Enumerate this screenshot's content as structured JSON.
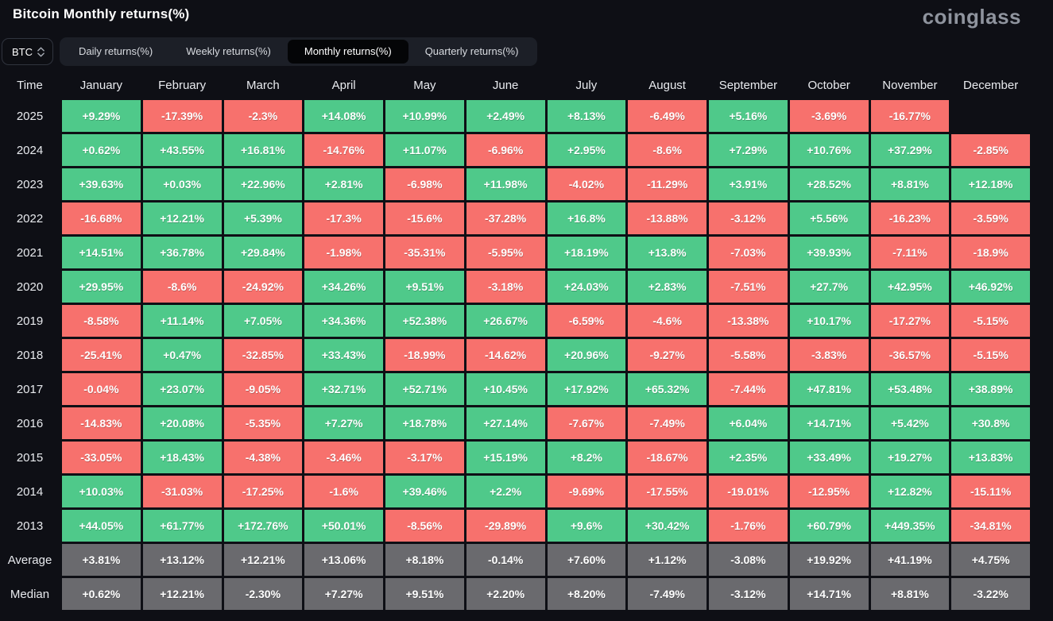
{
  "header": {
    "title": "Bitcoin Monthly returns(%)",
    "brand": "coinglass"
  },
  "controls": {
    "symbol": "BTC",
    "tabs": [
      {
        "label": "Daily returns(%)",
        "active": false
      },
      {
        "label": "Weekly returns(%)",
        "active": false
      },
      {
        "label": "Monthly returns(%)",
        "active": true
      },
      {
        "label": "Quarterly returns(%)",
        "active": false
      }
    ]
  },
  "chart_data": {
    "type": "heatmap",
    "title": "Bitcoin Monthly returns(%)",
    "corner_label": "Time",
    "columns": [
      "January",
      "February",
      "March",
      "April",
      "May",
      "June",
      "July",
      "August",
      "September",
      "October",
      "November",
      "December"
    ],
    "rows": [
      {
        "label": "2025",
        "type": "year",
        "values": [
          "+9.29%",
          "-17.39%",
          "-2.3%",
          "+14.08%",
          "+10.99%",
          "+2.49%",
          "+8.13%",
          "-6.49%",
          "+5.16%",
          "-3.69%",
          "-16.77%",
          null
        ]
      },
      {
        "label": "2024",
        "type": "year",
        "values": [
          "+0.62%",
          "+43.55%",
          "+16.81%",
          "-14.76%",
          "+11.07%",
          "-6.96%",
          "+2.95%",
          "-8.6%",
          "+7.29%",
          "+10.76%",
          "+37.29%",
          "-2.85%"
        ]
      },
      {
        "label": "2023",
        "type": "year",
        "values": [
          "+39.63%",
          "+0.03%",
          "+22.96%",
          "+2.81%",
          "-6.98%",
          "+11.98%",
          "-4.02%",
          "-11.29%",
          "+3.91%",
          "+28.52%",
          "+8.81%",
          "+12.18%"
        ]
      },
      {
        "label": "2022",
        "type": "year",
        "values": [
          "-16.68%",
          "+12.21%",
          "+5.39%",
          "-17.3%",
          "-15.6%",
          "-37.28%",
          "+16.8%",
          "-13.88%",
          "-3.12%",
          "+5.56%",
          "-16.23%",
          "-3.59%"
        ]
      },
      {
        "label": "2021",
        "type": "year",
        "values": [
          "+14.51%",
          "+36.78%",
          "+29.84%",
          "-1.98%",
          "-35.31%",
          "-5.95%",
          "+18.19%",
          "+13.8%",
          "-7.03%",
          "+39.93%",
          "-7.11%",
          "-18.9%"
        ]
      },
      {
        "label": "2020",
        "type": "year",
        "values": [
          "+29.95%",
          "-8.6%",
          "-24.92%",
          "+34.26%",
          "+9.51%",
          "-3.18%",
          "+24.03%",
          "+2.83%",
          "-7.51%",
          "+27.7%",
          "+42.95%",
          "+46.92%"
        ]
      },
      {
        "label": "2019",
        "type": "year",
        "values": [
          "-8.58%",
          "+11.14%",
          "+7.05%",
          "+34.36%",
          "+52.38%",
          "+26.67%",
          "-6.59%",
          "-4.6%",
          "-13.38%",
          "+10.17%",
          "-17.27%",
          "-5.15%"
        ]
      },
      {
        "label": "2018",
        "type": "year",
        "values": [
          "-25.41%",
          "+0.47%",
          "-32.85%",
          "+33.43%",
          "-18.99%",
          "-14.62%",
          "+20.96%",
          "-9.27%",
          "-5.58%",
          "-3.83%",
          "-36.57%",
          "-5.15%"
        ]
      },
      {
        "label": "2017",
        "type": "year",
        "values": [
          "-0.04%",
          "+23.07%",
          "-9.05%",
          "+32.71%",
          "+52.71%",
          "+10.45%",
          "+17.92%",
          "+65.32%",
          "-7.44%",
          "+47.81%",
          "+53.48%",
          "+38.89%"
        ]
      },
      {
        "label": "2016",
        "type": "year",
        "values": [
          "-14.83%",
          "+20.08%",
          "-5.35%",
          "+7.27%",
          "+18.78%",
          "+27.14%",
          "-7.67%",
          "-7.49%",
          "+6.04%",
          "+14.71%",
          "+5.42%",
          "+30.8%"
        ]
      },
      {
        "label": "2015",
        "type": "year",
        "values": [
          "-33.05%",
          "+18.43%",
          "-4.38%",
          "-3.46%",
          "-3.17%",
          "+15.19%",
          "+8.2%",
          "-18.67%",
          "+2.35%",
          "+33.49%",
          "+19.27%",
          "+13.83%"
        ]
      },
      {
        "label": "2014",
        "type": "year",
        "values": [
          "+10.03%",
          "-31.03%",
          "-17.25%",
          "-1.6%",
          "+39.46%",
          "+2.2%",
          "-9.69%",
          "-17.55%",
          "-19.01%",
          "-12.95%",
          "+12.82%",
          "-15.11%"
        ]
      },
      {
        "label": "2013",
        "type": "year",
        "values": [
          "+44.05%",
          "+61.77%",
          "+172.76%",
          "+50.01%",
          "-8.56%",
          "-29.89%",
          "+9.6%",
          "+30.42%",
          "-1.76%",
          "+60.79%",
          "+449.35%",
          "-34.81%"
        ]
      },
      {
        "label": "Average",
        "type": "aggregate",
        "values": [
          "+3.81%",
          "+13.12%",
          "+12.21%",
          "+13.06%",
          "+8.18%",
          "-0.14%",
          "+7.60%",
          "+1.12%",
          "-3.08%",
          "+19.92%",
          "+41.19%",
          "+4.75%"
        ]
      },
      {
        "label": "Median",
        "type": "aggregate",
        "values": [
          "+0.62%",
          "+12.21%",
          "-2.30%",
          "+7.27%",
          "+9.51%",
          "+2.20%",
          "+8.20%",
          "-7.49%",
          "-3.12%",
          "+14.71%",
          "+8.81%",
          "-3.22%"
        ]
      }
    ],
    "colors": {
      "positive": "#4FC98A",
      "negative": "#F7716D",
      "aggregate": "#6A6A6E"
    }
  }
}
